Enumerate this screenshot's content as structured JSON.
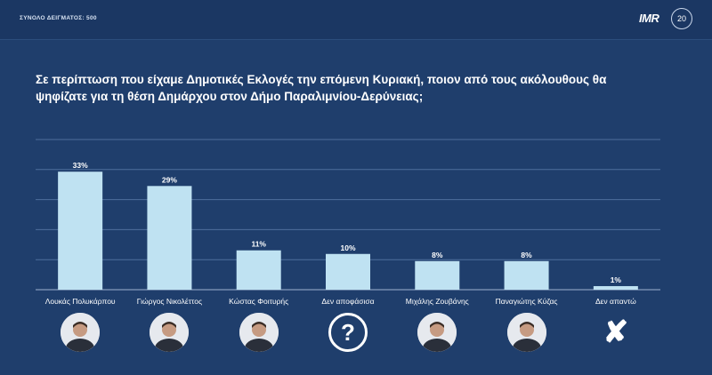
{
  "header": {
    "sample_label": "ΣΥΝΟΛΟ ΔΕΙΓΜΑΤΟΣ: 500",
    "logo_text": "IMR",
    "logo_badge": "20"
  },
  "question": "Σε περίπτωση που είχαμε Δημοτικές Εκλογές την επόμενη Κυριακή, ποιον από τους ακόλουθους θα ψηφίζατε για τη θέση Δημάρχου στον Δήμο Παραλιμνίου-Δερύνειας;",
  "colors": {
    "background": "#1f3e6c",
    "bar": "#bfe2f2",
    "gridline": "#4f6f9c"
  },
  "chart_data": {
    "type": "bar",
    "title": "Σε περίπτωση που είχαμε Δημοτικές Εκλογές την επόμενη Κυριακή, ποιον από τους ακόλουθους θα ψηφίζατε για τη θέση Δημάρχου στον Δήμο Παραλιμνίου-Δερύνειας;",
    "categories": [
      "Λουκάς Πολυκάρπου",
      "Γιώργος Νικολέττος",
      "Κώστας Φοιτυρής",
      "Δεν αποφάσισα",
      "Μιχάλης Ζουβάνης",
      "Παναγιώτης Κύζας",
      "Δεν απαντώ"
    ],
    "values": [
      33,
      29,
      11,
      10,
      8,
      8,
      1
    ],
    "data_labels": [
      "33%",
      "29%",
      "11%",
      "10%",
      "8%",
      "8%",
      "1%"
    ],
    "unit": "%",
    "ylim": [
      0,
      42
    ],
    "grid": true,
    "legend": "none",
    "xlabel": "",
    "ylabel": ""
  },
  "icons": [
    "candidate-photo",
    "candidate-photo",
    "candidate-photo",
    "question-mark-icon",
    "candidate-photo",
    "candidate-photo",
    "cross-icon"
  ],
  "icon_glyphs": {
    "question": "?",
    "cross": "✘"
  }
}
